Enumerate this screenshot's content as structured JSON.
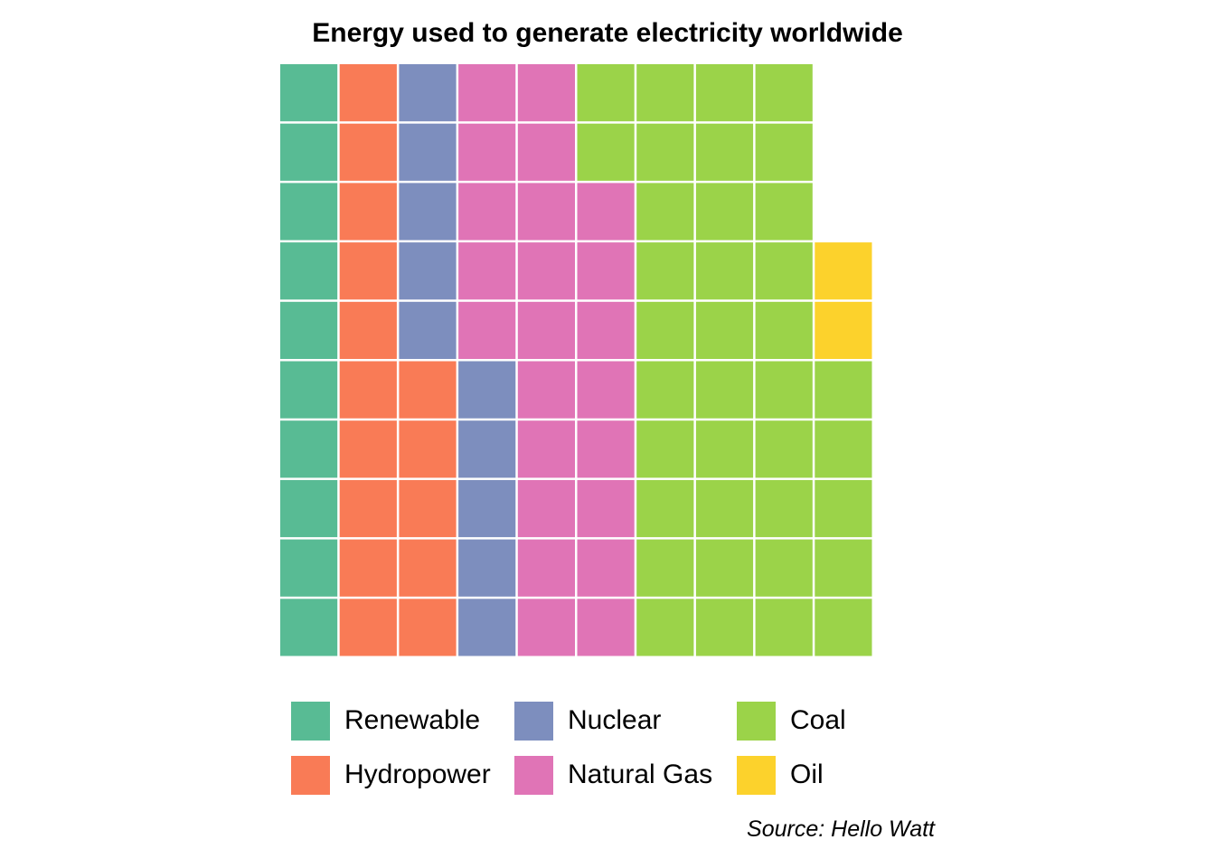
{
  "chart_data": {
    "type": "waffle",
    "title": "Energy used to generate electricity worldwide",
    "caption": "Source: Hello Watt",
    "grid": {
      "rows": 10,
      "columns": 10
    },
    "series": [
      {
        "name": "Renewable",
        "value": 10,
        "color": "#58BB94"
      },
      {
        "name": "Hydropower",
        "value": 15,
        "color": "#F97B56"
      },
      {
        "name": "Nuclear",
        "value": 10,
        "color": "#7D8EBE"
      },
      {
        "name": "Natural Gas",
        "value": 23,
        "color": "#E074B6"
      },
      {
        "name": "Coal",
        "value": 37,
        "color": "#9BD349"
      },
      {
        "name": "Oil",
        "value": 2,
        "color": "#FCD22C"
      }
    ],
    "legend_position": "bottom",
    "legend_columns": [
      [
        "Renewable",
        "Hydropower"
      ],
      [
        "Nuclear",
        "Natural Gas"
      ],
      [
        "Coal",
        "Oil"
      ]
    ]
  }
}
